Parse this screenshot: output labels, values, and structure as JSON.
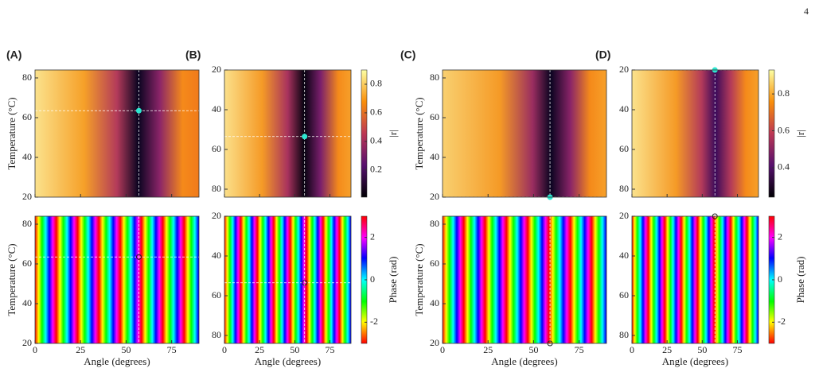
{
  "page_number": "4",
  "x_label": "Angle (degrees)",
  "y_label": "Temperature (°C)",
  "xlim": [
    0,
    90
  ],
  "xticks": [
    0,
    25,
    50,
    75
  ],
  "ylim": [
    20,
    84
  ],
  "yticks": [
    20,
    40,
    60,
    80
  ],
  "phase_colorbar": {
    "label": "Phase (rad)",
    "lim": [
      -3,
      3
    ],
    "ticks": [
      -2,
      0,
      2
    ]
  },
  "panels": [
    {
      "label": "(A)",
      "y_reversed": false,
      "marker": [
        57,
        63.5
      ]
    },
    {
      "label": "(B)",
      "y_reversed": true,
      "marker": [
        57,
        53.5
      ],
      "colorbar": {
        "label": "|r|",
        "lim": [
          0.01,
          0.9
        ],
        "ticks": [
          0.2,
          0.4,
          0.6,
          0.8
        ]
      }
    },
    {
      "label": "(C)",
      "y_reversed": false,
      "marker": [
        59,
        20
      ]
    },
    {
      "label": "(D)",
      "y_reversed": true,
      "marker": [
        59,
        20
      ],
      "colorbar": {
        "label": "|r|",
        "lim": [
          0.24,
          0.93
        ],
        "ticks": [
          0.4,
          0.6,
          0.8
        ]
      }
    }
  ]
}
